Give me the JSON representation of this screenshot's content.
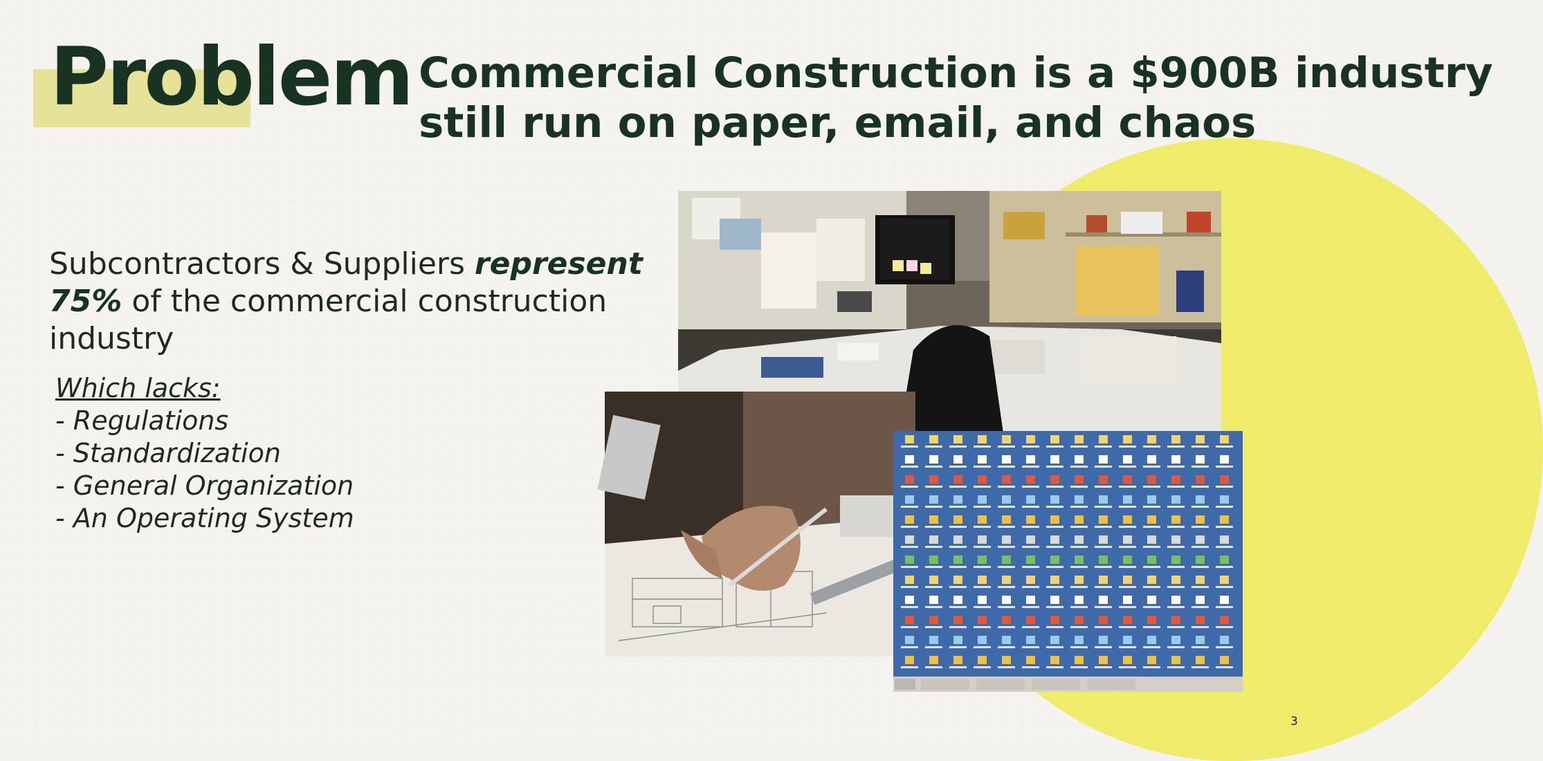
{
  "slide": {
    "title": "Problem",
    "subtitle_line1": "Commercial Construction is a $900B industry",
    "subtitle_line2": "still run on paper, email, and chaos",
    "stat": {
      "text_before": "Subcontractors & Suppliers ",
      "emphasis1": "represent",
      "emphasis2": "75%",
      "text_after": " of the commercial construction industry"
    },
    "lacks": {
      "heading": "Which lacks:",
      "items": [
        "- Regulations",
        "- Standardization",
        "- General Organization",
        "- An Operating System"
      ]
    },
    "page_number": "3"
  },
  "colors": {
    "title": "#183321",
    "accent_yellow": "#eeec6a",
    "highlight": "#e5e39a",
    "background": "#f4f3f0"
  }
}
